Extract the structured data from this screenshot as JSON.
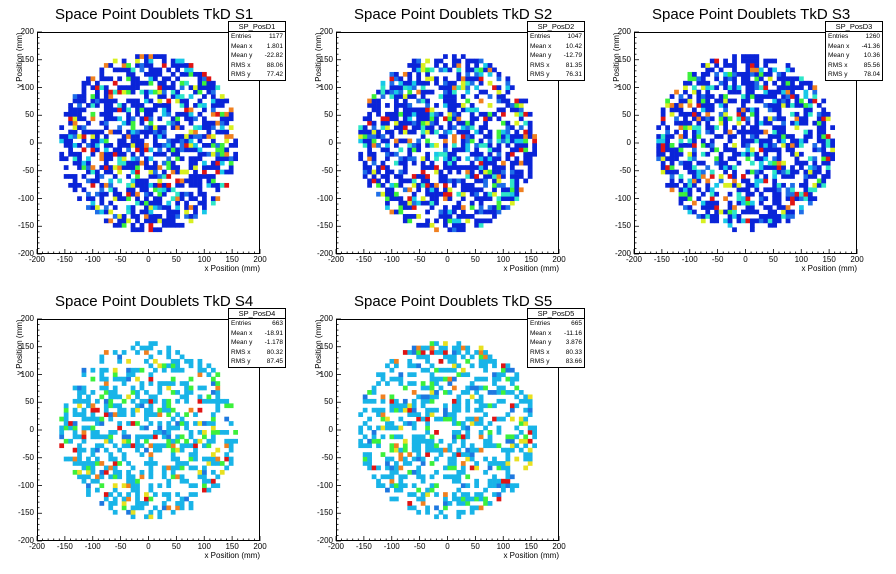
{
  "chart_data": [
    {
      "type": "heatmap",
      "title": "Space Point Doublets TkD S1",
      "xlabel": "x Position (mm)",
      "ylabel": "y Position (mm)",
      "xlim": [
        -200,
        200
      ],
      "ylim": [
        -200,
        200
      ],
      "xticks": [
        "-200",
        "-150",
        "-100",
        "-50",
        "0",
        "50",
        "100",
        "150",
        "200"
      ],
      "yticks": [
        "-200",
        "-150",
        "-100",
        "-50",
        "0",
        "50",
        "100",
        "150",
        "200"
      ],
      "stats": {
        "name": "SP_PosD1",
        "rows": [
          [
            "Entries",
            "1177"
          ],
          [
            "Mean x",
            "1.801"
          ],
          [
            "Mean y",
            "-22.82"
          ],
          [
            "RMS x",
            "88.06"
          ],
          [
            "RMS y",
            "77.42"
          ]
        ]
      },
      "density": "high",
      "seed": 11,
      "radius": 160
    },
    {
      "type": "heatmap",
      "title": "Space Point Doublets TkD S2",
      "xlabel": "x Position (mm)",
      "ylabel": "y Position (mm)",
      "xlim": [
        -200,
        200
      ],
      "ylim": [
        -200,
        200
      ],
      "xticks": [
        "-200",
        "-150",
        "-100",
        "-50",
        "0",
        "50",
        "100",
        "150",
        "200"
      ],
      "yticks": [
        "-200",
        "-150",
        "-100",
        "-50",
        "0",
        "50",
        "100",
        "150",
        "200"
      ],
      "stats": {
        "name": "SP_PosD2",
        "rows": [
          [
            "Entries",
            "1047"
          ],
          [
            "Mean x",
            "10.42"
          ],
          [
            "Mean y",
            "-12.79"
          ],
          [
            "RMS x",
            "81.35"
          ],
          [
            "RMS y",
            "76.31"
          ]
        ]
      },
      "density": "high",
      "seed": 23,
      "radius": 160
    },
    {
      "type": "heatmap",
      "title": "Space Point Doublets TkD S3",
      "xlabel": "x Position (mm)",
      "ylabel": "y Position (mm)",
      "xlim": [
        -200,
        200
      ],
      "ylim": [
        -200,
        200
      ],
      "xticks": [
        "-200",
        "-150",
        "-100",
        "-50",
        "0",
        "50",
        "100",
        "150",
        "200"
      ],
      "yticks": [
        "-200",
        "-150",
        "-100",
        "-50",
        "0",
        "50",
        "100",
        "150",
        "200"
      ],
      "stats": {
        "name": "SP_PosD3",
        "rows": [
          [
            "Entries",
            "1260"
          ],
          [
            "Mean x",
            "-41.36"
          ],
          [
            "Mean y",
            "10.36"
          ],
          [
            "RMS x",
            "85.56"
          ],
          [
            "RMS y",
            "78.04"
          ]
        ]
      },
      "density": "high",
      "seed": 37,
      "radius": 160
    },
    {
      "type": "heatmap",
      "title": "Space Point Doublets TkD S4",
      "xlabel": "x Position (mm)",
      "ylabel": "y Position (mm)",
      "xlim": [
        -200,
        200
      ],
      "ylim": [
        -200,
        200
      ],
      "xticks": [
        "-200",
        "-150",
        "-100",
        "-50",
        "0",
        "50",
        "100",
        "150",
        "200"
      ],
      "yticks": [
        "-200",
        "-150",
        "-100",
        "-50",
        "0",
        "50",
        "100",
        "150",
        "200"
      ],
      "stats": {
        "name": "SP_PosD4",
        "rows": [
          [
            "Entries",
            "663"
          ],
          [
            "Mean x",
            "-18.91"
          ],
          [
            "Mean y",
            "-1.178"
          ],
          [
            "RMS x",
            "80.32"
          ],
          [
            "RMS y",
            "87.45"
          ]
        ]
      },
      "density": "low",
      "seed": 41,
      "radius": 160
    },
    {
      "type": "heatmap",
      "title": "Space Point Doublets TkD S5",
      "xlabel": "x Position (mm)",
      "ylabel": "y Position (mm)",
      "xlim": [
        -200,
        200
      ],
      "ylim": [
        -200,
        200
      ],
      "xticks": [
        "-200",
        "-150",
        "-100",
        "-50",
        "0",
        "50",
        "100",
        "150",
        "200"
      ],
      "yticks": [
        "-200",
        "-150",
        "-100",
        "-50",
        "0",
        "50",
        "100",
        "150",
        "200"
      ],
      "stats": {
        "name": "SP_PosD5",
        "rows": [
          [
            "Entries",
            "665"
          ],
          [
            "Mean x",
            "-11.16"
          ],
          [
            "Mean y",
            "3.876"
          ],
          [
            "RMS x",
            "80.33"
          ],
          [
            "RMS y",
            "83.66"
          ]
        ]
      },
      "density": "low",
      "seed": 53,
      "radius": 160
    }
  ],
  "colors": {
    "high_palette": [
      "#0a24d8",
      "#0a24d8",
      "#0a24d8",
      "#1e6ee8",
      "#18c8e8",
      "#2ee6c8",
      "#3cf03c",
      "#d8f020",
      "#f08020",
      "#e01414"
    ],
    "low_palette": [
      "#18b4e8",
      "#18b4e8",
      "#18b4e8",
      "#18b4e8",
      "#1e78e0",
      "#3cf03c",
      "#3cf03c",
      "#e8e020",
      "#f08020",
      "#e01414"
    ]
  }
}
